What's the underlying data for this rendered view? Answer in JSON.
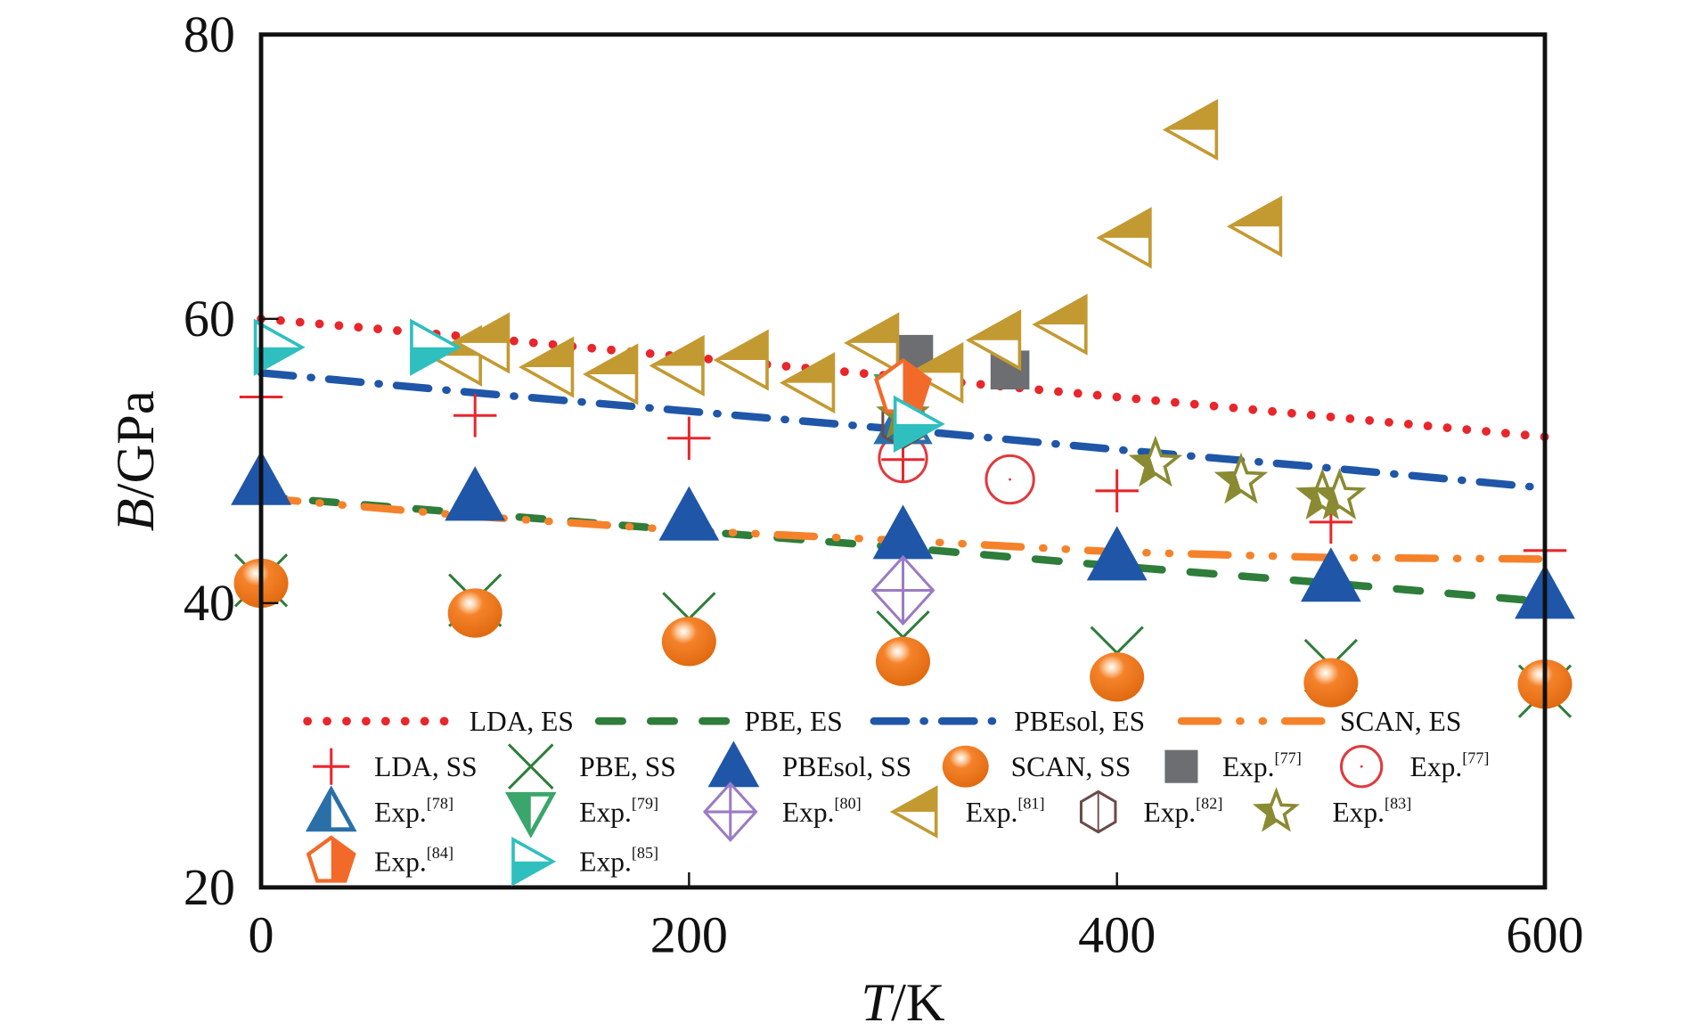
{
  "chart_data": {
    "type": "scatter",
    "xlabel": {
      "italic": "T",
      "rest": "/K"
    },
    "ylabel": {
      "italic": "B",
      "rest": "/GPa"
    },
    "xlim": [
      0,
      600
    ],
    "ylim": [
      20,
      80
    ],
    "xticks": [
      "0",
      "200",
      "400",
      "600"
    ],
    "yticks": [
      "20",
      "40",
      "60",
      "80"
    ],
    "grid": false,
    "legend_placement": "bottom",
    "lines": [
      {
        "name": "LDA, ES",
        "color": "#e8262b",
        "style": "dotted",
        "x": [
          0,
          100,
          200,
          300,
          400,
          500,
          600
        ],
        "y": [
          60,
          58.7,
          57.3,
          55.9,
          54.5,
          53.1,
          51.7
        ]
      },
      {
        "name": "PBE, ES",
        "color": "#2e7d3a",
        "style": "dashed",
        "x": [
          0,
          100,
          200,
          300,
          400,
          500,
          600
        ],
        "y": [
          47.5,
          46.3,
          45.1,
          43.9,
          42.6,
          41.4,
          40.1
        ]
      },
      {
        "name": "PBEsol, ES",
        "color": "#1f56a8",
        "style": "dashdot",
        "x": [
          0,
          100,
          200,
          300,
          400,
          500,
          600
        ],
        "y": [
          56.2,
          54.8,
          53.5,
          52.2,
          50.8,
          49.5,
          48.1
        ]
      },
      {
        "name": "SCAN, ES",
        "color": "#f5822a",
        "style": "dashdotdot",
        "x": [
          0,
          100,
          200,
          300,
          400,
          500,
          600
        ],
        "y": [
          47.4,
          46.1,
          45.1,
          44.4,
          43.6,
          43.2,
          43.1
        ]
      }
    ],
    "points": [
      {
        "name": "LDA, SS",
        "marker": "plus",
        "color": "#e8262b",
        "x": [
          0,
          100,
          200,
          300,
          400,
          500,
          600
        ],
        "y": [
          54.5,
          53.2,
          51.6,
          50.1,
          47.9,
          45.7,
          43.7
        ]
      },
      {
        "name": "PBE, SS",
        "marker": "x",
        "color": "#2e7d3a",
        "x": [
          0,
          100,
          200,
          300,
          400,
          500,
          600
        ],
        "y": [
          41.6,
          40.2,
          38.9,
          37.6,
          36.5,
          35.6,
          33.8
        ]
      },
      {
        "name": "PBEsol, SS",
        "marker": "triangle-up",
        "color": "#1f56a8",
        "x": [
          0,
          100,
          200,
          300,
          400,
          500,
          600
        ],
        "y": [
          48.6,
          47.5,
          46.1,
          44.8,
          43.3,
          41.8,
          40.6
        ]
      },
      {
        "name": "SCAN, SS",
        "marker": "sphere",
        "color": "#f5822a",
        "x": [
          0,
          100,
          200,
          300,
          400,
          500,
          600
        ],
        "y": [
          41.4,
          39.3,
          37.3,
          35.9,
          34.8,
          34.4,
          34.3
        ]
      },
      {
        "name": "Exp.",
        "ref": "[77]",
        "marker": "square",
        "color": "#6d6e71",
        "x": [
          305,
          350
        ],
        "y": [
          57.5,
          56.4
        ]
      },
      {
        "name": "Exp.",
        "ref": "[77]",
        "marker": "circle-dot",
        "color": "#e03a3e",
        "x": [
          300,
          350
        ],
        "y": [
          50.2,
          48.7
        ]
      },
      {
        "name": "Exp.",
        "ref": "[78]",
        "marker": "triangle-up-half",
        "color": "#2a6fa8",
        "x": [
          300
        ],
        "y": [
          52.8
        ]
      },
      {
        "name": "Exp.",
        "ref": "[79]",
        "marker": "triangle-down-half",
        "color": "#3aa66b",
        "x": [
          300
        ],
        "y": [
          54.5
        ]
      },
      {
        "name": "Exp.",
        "ref": "[80]",
        "marker": "diamond-cross",
        "color": "#9b7bc4",
        "x": [
          300
        ],
        "y": [
          40.9
        ]
      },
      {
        "name": "Exp.",
        "ref": "[81]",
        "marker": "triangle-left-half",
        "color": "#c39a32",
        "x": [
          92,
          105,
          135,
          165,
          196,
          226,
          257,
          287,
          317,
          344,
          375,
          405,
          436,
          466
        ],
        "y": [
          57.4,
          58.3,
          56.6,
          56.1,
          56.7,
          57.1,
          55.5,
          58.3,
          56.2,
          58.5,
          59.6,
          65.7,
          73.3,
          66.5
        ]
      },
      {
        "name": "Exp.",
        "ref": "[82]",
        "marker": "hexagon",
        "color": "#6b4a4a",
        "x": [
          300
        ],
        "y": [
          52.6
        ]
      },
      {
        "name": "Exp.",
        "ref": "[83]",
        "marker": "star",
        "color": "#8a8a32",
        "x": [
          300,
          418,
          458,
          496,
          504
        ],
        "y": [
          53.2,
          49.8,
          48.6,
          47.5,
          47.5
        ]
      },
      {
        "name": "Exp.",
        "ref": "[84]",
        "marker": "pentagon-half",
        "color": "#f26a2a",
        "x": [
          300
        ],
        "y": [
          55.1
        ]
      },
      {
        "name": "Exp.",
        "ref": "[85]",
        "marker": "triangle-right-half",
        "color": "#2fbfbf",
        "x": [
          7,
          80,
          306
        ],
        "y": [
          58,
          58,
          52.6
        ]
      }
    ]
  }
}
